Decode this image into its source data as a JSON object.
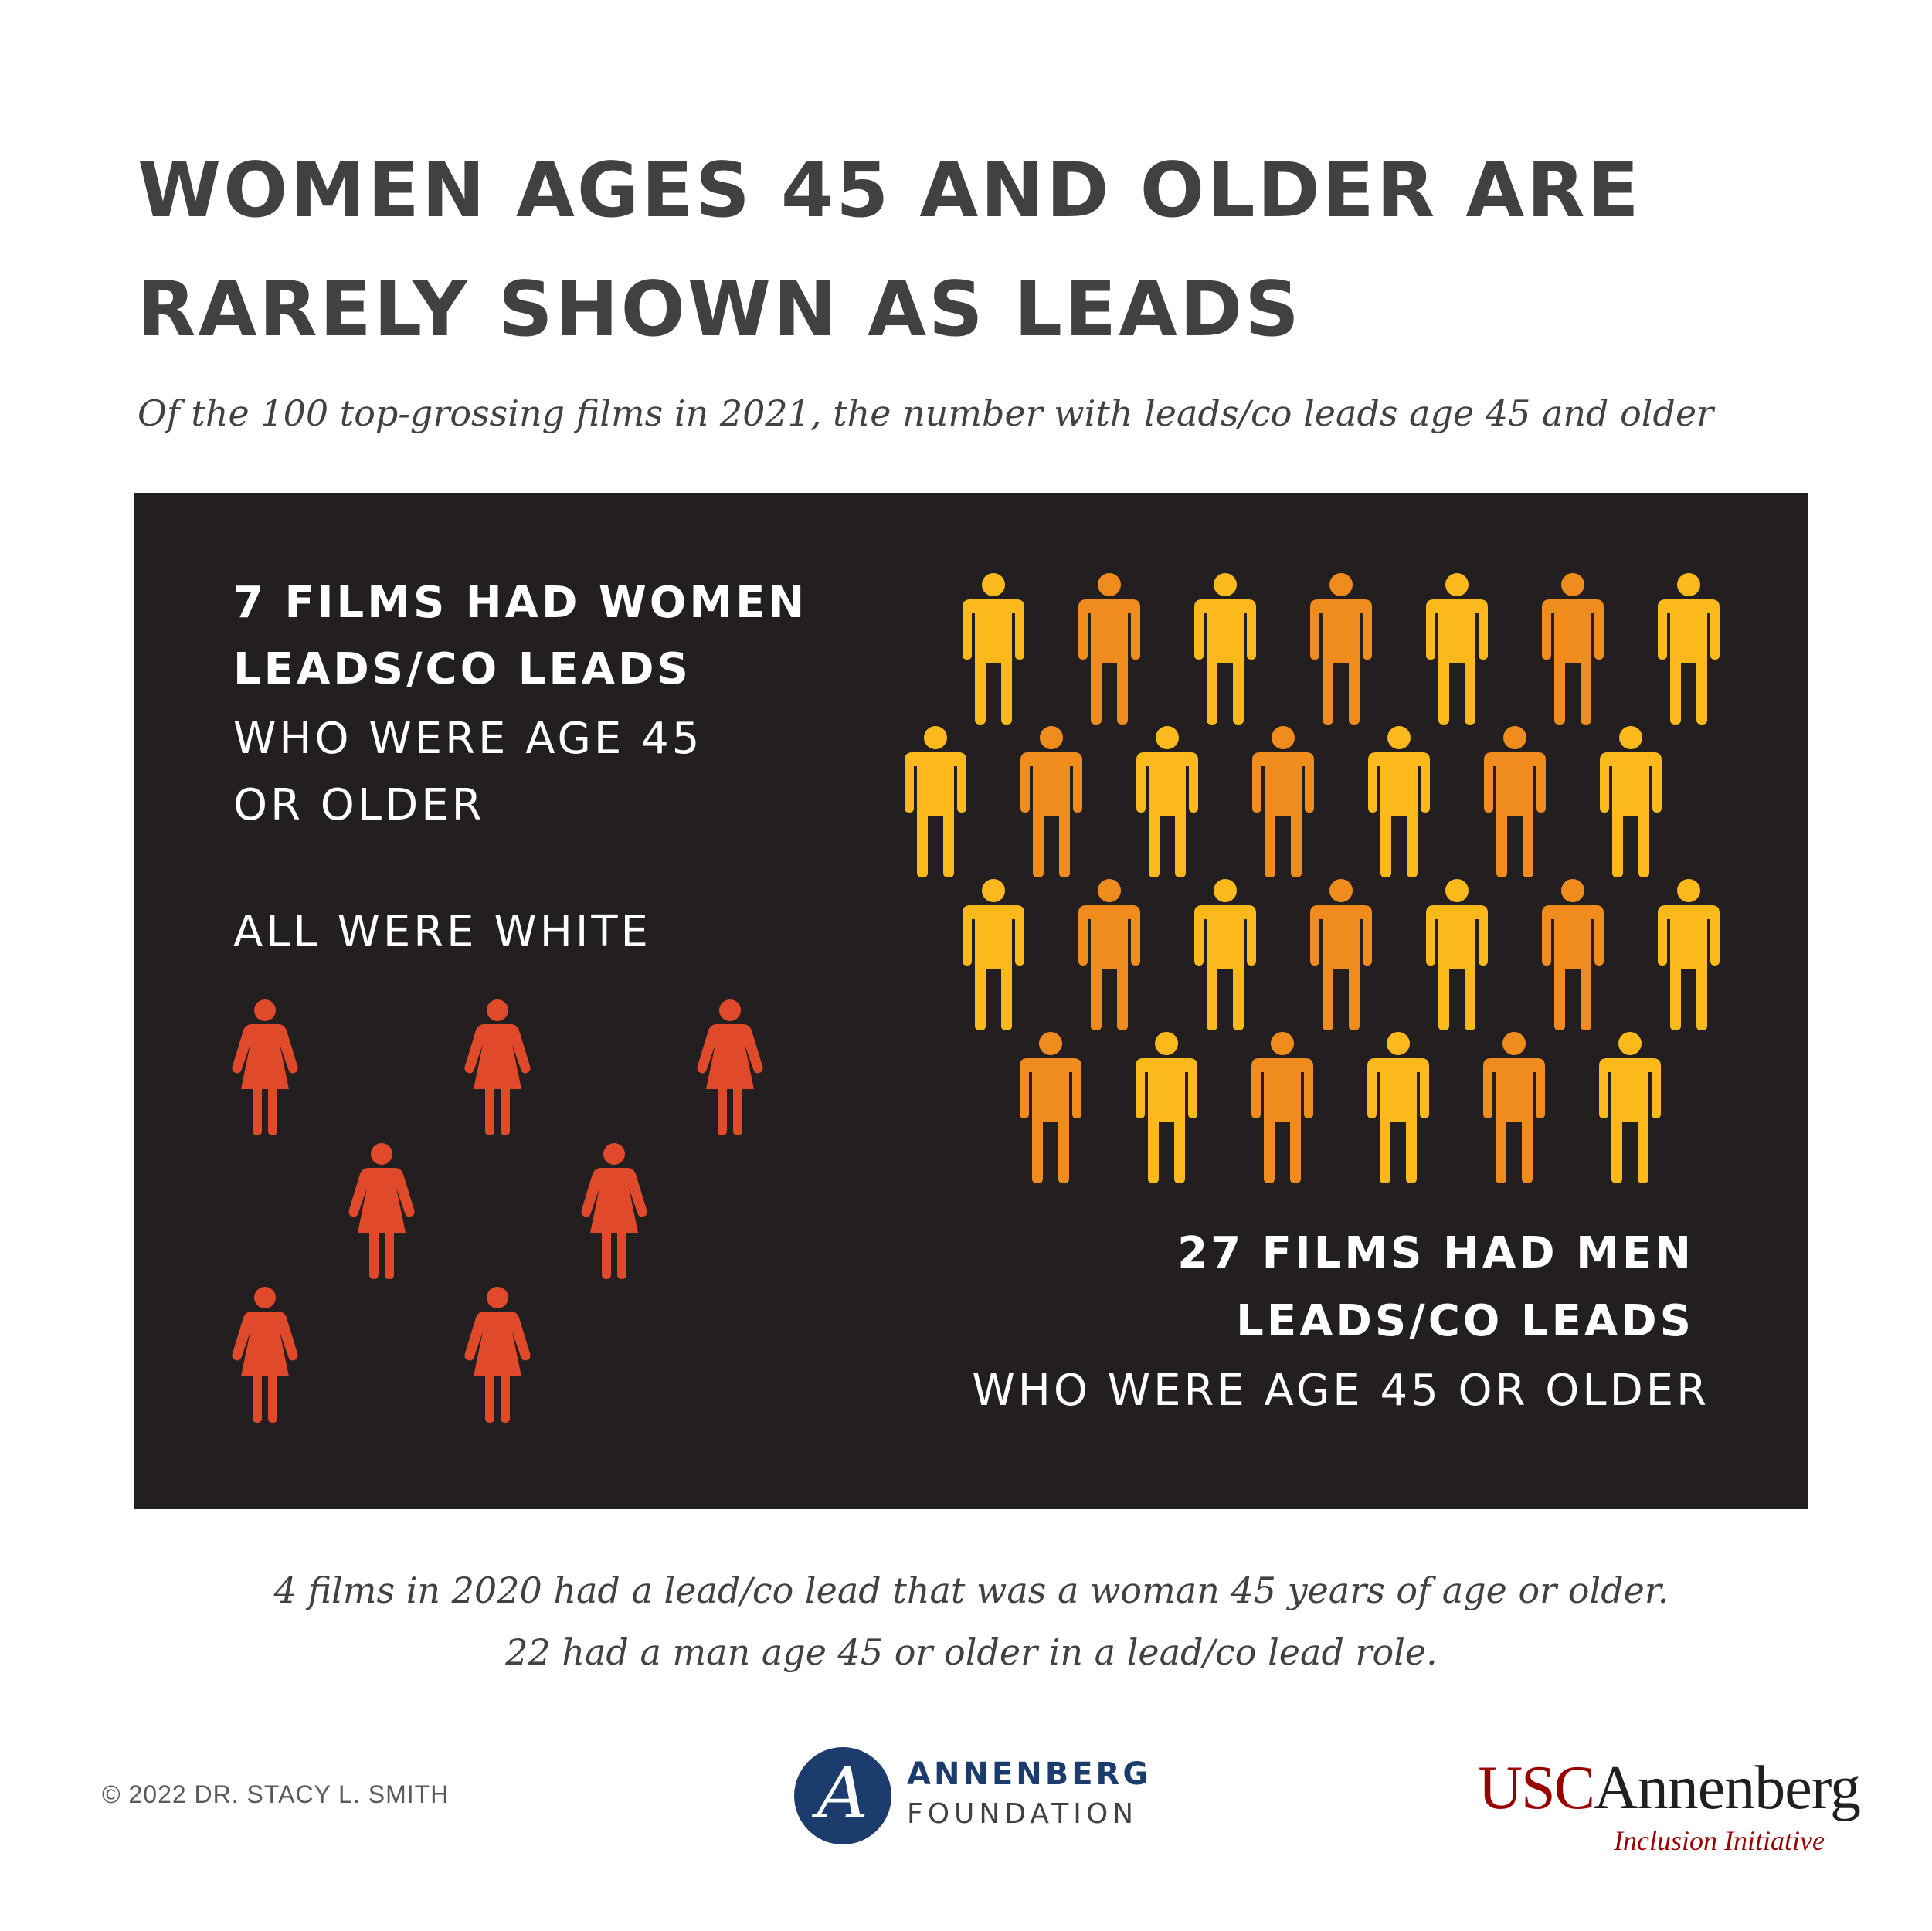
{
  "headline": {
    "line1": "WOMEN AGES 45 AND OLDER ARE",
    "line2": "RARELY SHOWN AS LEADS"
  },
  "subtitle": "Of the 100 top-grossing films in 2021, the number with leads/co leads age 45 and older",
  "women": {
    "count": 7,
    "bold_line1": "7 FILMS HAD WOMEN",
    "bold_line2": "LEADS/CO LEADS",
    "light_line1": "WHO WERE AGE 45",
    "light_line2": "OR OLDER",
    "note": "ALL WERE WHITE",
    "icon": "woman-figure-icon",
    "color": "#e04a2a"
  },
  "men": {
    "count": 27,
    "bold_line1": "27 FILMS HAD MEN",
    "bold_line2": "LEADS/CO LEADS",
    "light_line1": "WHO WERE AGE 45 OR OLDER",
    "icon": "man-figure-icon",
    "colors": [
      "#fbb91c",
      "#f08c1e"
    ]
  },
  "footnote": {
    "line1": "4 films in 2020 had a lead/co lead that was a woman 45 years of age or older.",
    "line2": "22 had a man age 45 or older in a lead/co lead role."
  },
  "copyright": "© 2022 DR. STACY L. SMITH",
  "annenberg_foundation": {
    "letter": "A",
    "name": "ANNENBERG",
    "sub": "FOUNDATION",
    "color": "#1d3c6e"
  },
  "usc_annenberg": {
    "part1": "USC",
    "part2": "Annenberg",
    "sub": "Inclusion Initiative",
    "color": "#990000"
  }
}
